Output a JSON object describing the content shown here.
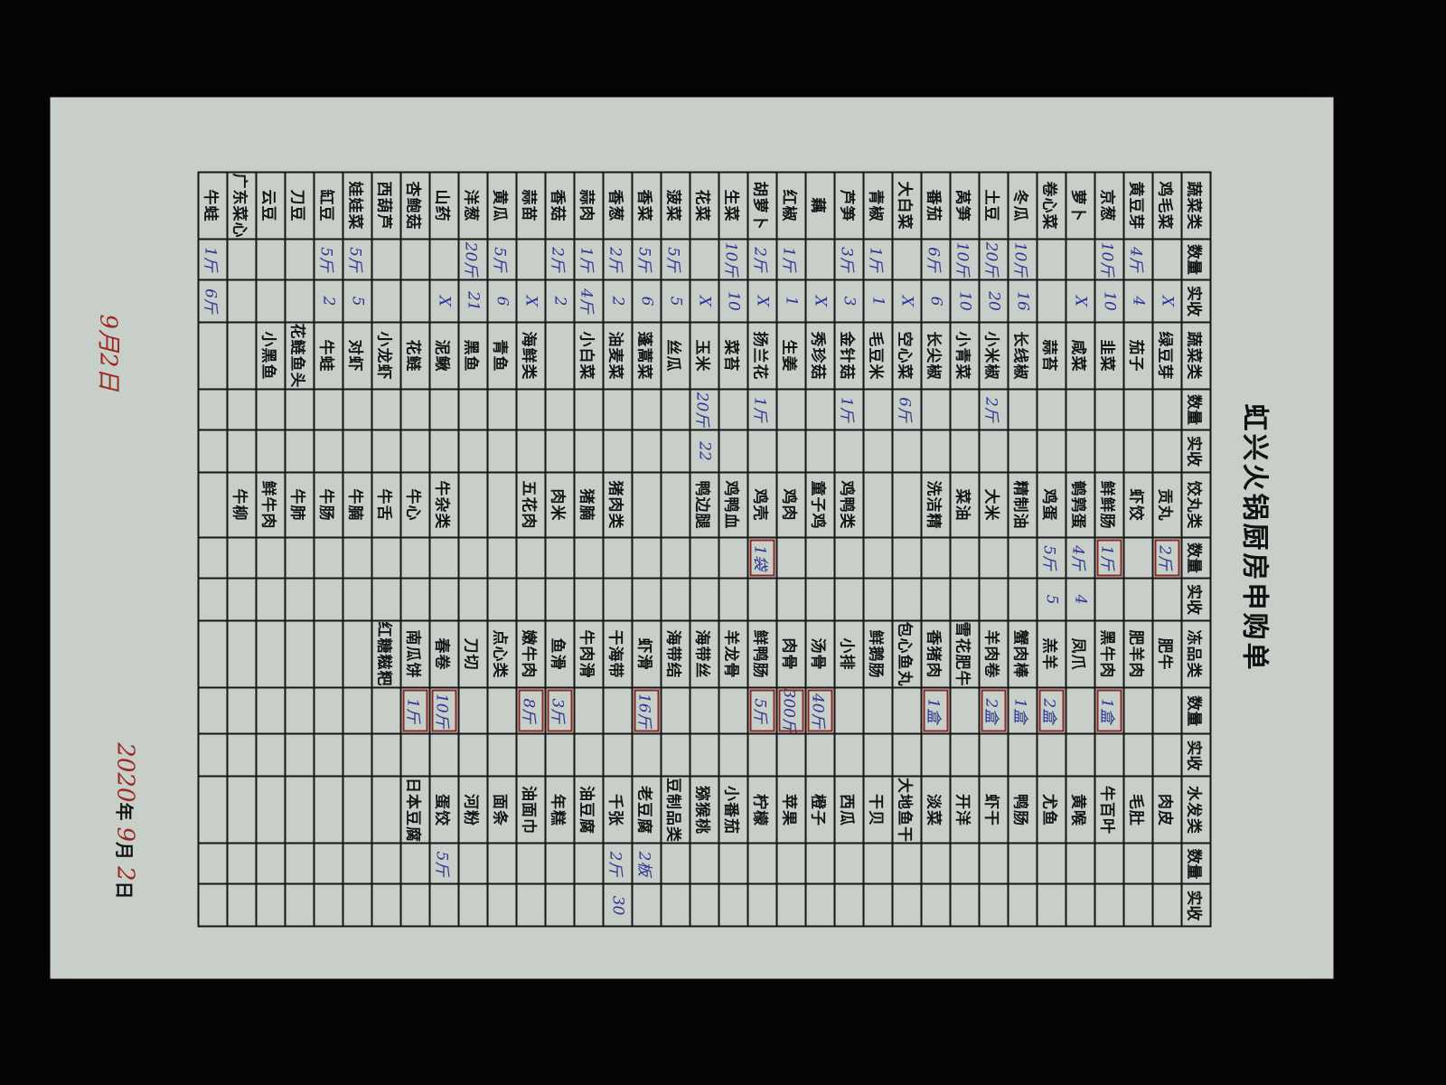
{
  "title": "虹兴火锅厨房申购单",
  "header": [
    "蔬菜类",
    "数量",
    "实收",
    "蔬菜类",
    "数量",
    "实收",
    "饺丸类",
    "数量",
    "实收",
    "冻品类",
    "数量",
    "实收",
    "水发类",
    "数量",
    "实收"
  ],
  "rows": [
    [
      {
        "n": "鸡毛菜",
        "q": "",
        "r": "X"
      },
      {
        "n": "绿豆芽"
      },
      {
        "n": "贡丸",
        "q": "2斤",
        "box": true
      },
      {
        "n": "肥牛"
      },
      {
        "n": "肉皮"
      }
    ],
    [
      {
        "n": "黄豆芽",
        "q": "4斤",
        "r": "4"
      },
      {
        "n": "茄子"
      },
      {
        "n": "虾饺"
      },
      {
        "n": "肥羊肉"
      },
      {
        "n": "毛肚"
      }
    ],
    [
      {
        "n": "京葱",
        "q": "10斤",
        "r": "10"
      },
      {
        "n": "韭菜"
      },
      {
        "n": "鲜鲜肠",
        "q": "1斤",
        "box": true
      },
      {
        "n": "黑牛肉",
        "q": "1盒",
        "box": true
      },
      {
        "n": "牛百叶"
      }
    ],
    [
      {
        "n": "萝卜",
        "q": "",
        "r": "X"
      },
      {
        "n": "咸菜"
      },
      {
        "n": "鹌鹑蛋",
        "q": "4斤",
        "r": "4"
      },
      {
        "n": "凤爪"
      },
      {
        "n": "黄喉"
      }
    ],
    [
      {
        "n": "卷心菜"
      },
      {
        "n": "蒜苔"
      },
      {
        "n": "鸡蛋",
        "q": "5斤",
        "r": "5"
      },
      {
        "n": "羔羊",
        "q": "2盒",
        "box": true
      },
      {
        "n": "尤鱼"
      }
    ],
    [
      {
        "n": "冬瓜",
        "q": "10斤",
        "r": "16"
      },
      {
        "n": "长线椒"
      },
      {
        "n": "精制油"
      },
      {
        "n": "蟹肉棒",
        "q": "1盒"
      },
      {
        "n": "鸭肠"
      }
    ],
    [
      {
        "n": "土豆",
        "q": "20斤",
        "r": "20"
      },
      {
        "n": "小米椒",
        "q": "2斤"
      },
      {
        "n": "大米"
      },
      {
        "n": "羊肉卷",
        "q": "2盒",
        "box": true
      },
      {
        "n": "虾干"
      }
    ],
    [
      {
        "n": "莴笋",
        "q": "10斤",
        "r": "10"
      },
      {
        "n": "小青菜"
      },
      {
        "n": "菜油"
      },
      {
        "n": "雪花肥牛"
      },
      {
        "n": "开洋"
      }
    ],
    [
      {
        "n": "番茄",
        "q": "6斤",
        "r": "6"
      },
      {
        "n": "长尖椒"
      },
      {
        "n": "洗洁精"
      },
      {
        "n": "香猪肉",
        "q": "1盒",
        "box": true
      },
      {
        "n": "淡菜"
      }
    ],
    [
      {
        "n": "大白菜",
        "q": "",
        "r": "X"
      },
      {
        "n": "空心菜",
        "q": "6斤"
      },
      {
        "n": ""
      },
      {
        "n": "包心鱼丸"
      },
      {
        "n": "大地鱼干"
      }
    ],
    [
      {
        "n": "青椒",
        "q": "1斤",
        "r": "1"
      },
      {
        "n": "毛豆米"
      },
      {
        "n": ""
      },
      {
        "n": "鲜鹅肠"
      },
      {
        "n": "干贝"
      }
    ],
    [
      {
        "n": "芦笋",
        "q": "3斤",
        "r": "3"
      },
      {
        "n": "金针菇",
        "q": "1斤"
      },
      {
        "n": "鸡鸭类"
      },
      {
        "n": "小排"
      },
      {
        "n": "西瓜"
      }
    ],
    [
      {
        "n": "藕",
        "q": "",
        "r": "X"
      },
      {
        "n": "秀珍菇"
      },
      {
        "n": "童子鸡"
      },
      {
        "n": "汤骨",
        "q": "40斤",
        "box": true
      },
      {
        "n": "橙子"
      }
    ],
    [
      {
        "n": "红椒",
        "q": "1斤",
        "r": "1"
      },
      {
        "n": "生姜"
      },
      {
        "n": "鸡肉"
      },
      {
        "n": "肉骨",
        "q": "300斤",
        "box": true
      },
      {
        "n": "苹果"
      }
    ],
    [
      {
        "n": "胡萝卜",
        "q": "2斤",
        "r": "X"
      },
      {
        "n": "扬兰花",
        "q": "1斤"
      },
      {
        "n": "鸡壳",
        "q": "1袋",
        "box": true
      },
      {
        "n": "鲜鸭肠",
        "q": "5斤",
        "box": true
      },
      {
        "n": "柠檬"
      }
    ],
    [
      {
        "n": "生菜",
        "q": "10斤",
        "r": "10"
      },
      {
        "n": "菜苔"
      },
      {
        "n": "鸡鸭血"
      },
      {
        "n": "羊龙骨"
      },
      {
        "n": "小番茄"
      }
    ],
    [
      {
        "n": "花菜",
        "q": "",
        "r": "X"
      },
      {
        "n": "玉米",
        "q": "20斤",
        "r": "22"
      },
      {
        "n": "鸭边腿"
      },
      {
        "n": "海带丝"
      },
      {
        "n": "猕猴桃"
      }
    ],
    [
      {
        "n": "菠菜",
        "q": "5斤",
        "r": "5"
      },
      {
        "n": "丝瓜"
      },
      {
        "n": ""
      },
      {
        "n": "海带结"
      },
      {
        "n": "豆制品类"
      }
    ],
    [
      {
        "n": "香菜",
        "q": "5斤",
        "r": "6"
      },
      {
        "n": "蓬蒿菜"
      },
      {
        "n": ""
      },
      {
        "n": "虾滑",
        "q": "16斤",
        "box": true
      },
      {
        "n": "老豆腐",
        "q": "2板"
      }
    ],
    [
      {
        "n": "香葱",
        "q": "2斤",
        "r": "2"
      },
      {
        "n": "油麦菜"
      },
      {
        "n": "猪肉类"
      },
      {
        "n": "干海带"
      },
      {
        "n": "千张",
        "q": "2斤",
        "r": "30"
      }
    ],
    [
      {
        "n": "蒜肉",
        "q": "1斤",
        "r": "4斤"
      },
      {
        "n": "小白菜"
      },
      {
        "n": "猪腩"
      },
      {
        "n": "牛肉滑"
      },
      {
        "n": "油豆腐"
      }
    ],
    [
      {
        "n": "香菇",
        "q": "2斤",
        "r": "2"
      },
      {
        "n": ""
      },
      {
        "n": "肉米"
      },
      {
        "n": "鱼滑",
        "q": "3斤",
        "box": true
      },
      {
        "n": "年糕"
      }
    ],
    [
      {
        "n": "蒜苗",
        "q": "",
        "r": "X"
      },
      {
        "n": "海鲜类"
      },
      {
        "n": "五花肉"
      },
      {
        "n": "嫩牛肉",
        "q": "8斤",
        "box": true
      },
      {
        "n": "油面巾"
      }
    ],
    [
      {
        "n": "黄瓜",
        "q": "5斤",
        "r": "6"
      },
      {
        "n": "青鱼"
      },
      {
        "n": ""
      },
      {
        "n": "点心类"
      },
      {
        "n": "面条"
      }
    ],
    [
      {
        "n": "洋葱",
        "q": "20斤",
        "r": "21"
      },
      {
        "n": "黑鱼"
      },
      {
        "n": ""
      },
      {
        "n": "刀切"
      },
      {
        "n": "河粉"
      }
    ],
    [
      {
        "n": "山药",
        "q": "",
        "r": "X"
      },
      {
        "n": "泥鳅"
      },
      {
        "n": "牛杂类"
      },
      {
        "n": "春卷",
        "q": "10斤",
        "box": true
      },
      {
        "n": "蛋饺",
        "q": "5斤"
      }
    ],
    [
      {
        "n": "杏鲍菇"
      },
      {
        "n": "花鲢"
      },
      {
        "n": "牛心"
      },
      {
        "n": "南瓜饼",
        "q": "1斤",
        "box": true
      },
      {
        "n": "日本豆腐"
      }
    ],
    [
      {
        "n": "西葫芦"
      },
      {
        "n": "小龙虾"
      },
      {
        "n": "牛舌"
      },
      {
        "n": "红糖糍粑"
      },
      {
        "n": ""
      }
    ],
    [
      {
        "n": "娃娃菜",
        "q": "5斤",
        "r": "5"
      },
      {
        "n": "对虾"
      },
      {
        "n": "牛腩"
      },
      {
        "n": ""
      },
      {
        "n": ""
      }
    ],
    [
      {
        "n": "缸豆",
        "q": "5斤",
        "r": "2"
      },
      {
        "n": "牛蛙"
      },
      {
        "n": "牛肠"
      },
      {
        "n": ""
      },
      {
        "n": ""
      }
    ],
    [
      {
        "n": "刀豆"
      },
      {
        "n": "花鲢鱼头"
      },
      {
        "n": "牛肺"
      },
      {
        "n": ""
      },
      {
        "n": ""
      }
    ],
    [
      {
        "n": "云豆"
      },
      {
        "n": "小黑鱼"
      },
      {
        "n": "鲜牛肉"
      },
      {
        "n": ""
      },
      {
        "n": ""
      }
    ],
    [
      {
        "n": "广东菜心"
      },
      {
        "n": ""
      },
      {
        "n": "牛柳"
      },
      {
        "n": ""
      },
      {
        "n": ""
      }
    ],
    [
      {
        "n": "牛蛙",
        "q": "1斤",
        "r": "6斤"
      },
      {
        "n": ""
      },
      {
        "n": ""
      },
      {
        "n": ""
      },
      {
        "n": ""
      }
    ]
  ],
  "notes": {
    "left_red": "9月2日"
  },
  "date": {
    "year": "2020",
    "year_unit": "年",
    "month": "9",
    "month_unit": "月",
    "day": "2",
    "day_unit": "日"
  },
  "colors": {
    "paper": "#c8cfc9",
    "ink_blue": "#2a3590",
    "ink_red": "#9a2a22"
  }
}
